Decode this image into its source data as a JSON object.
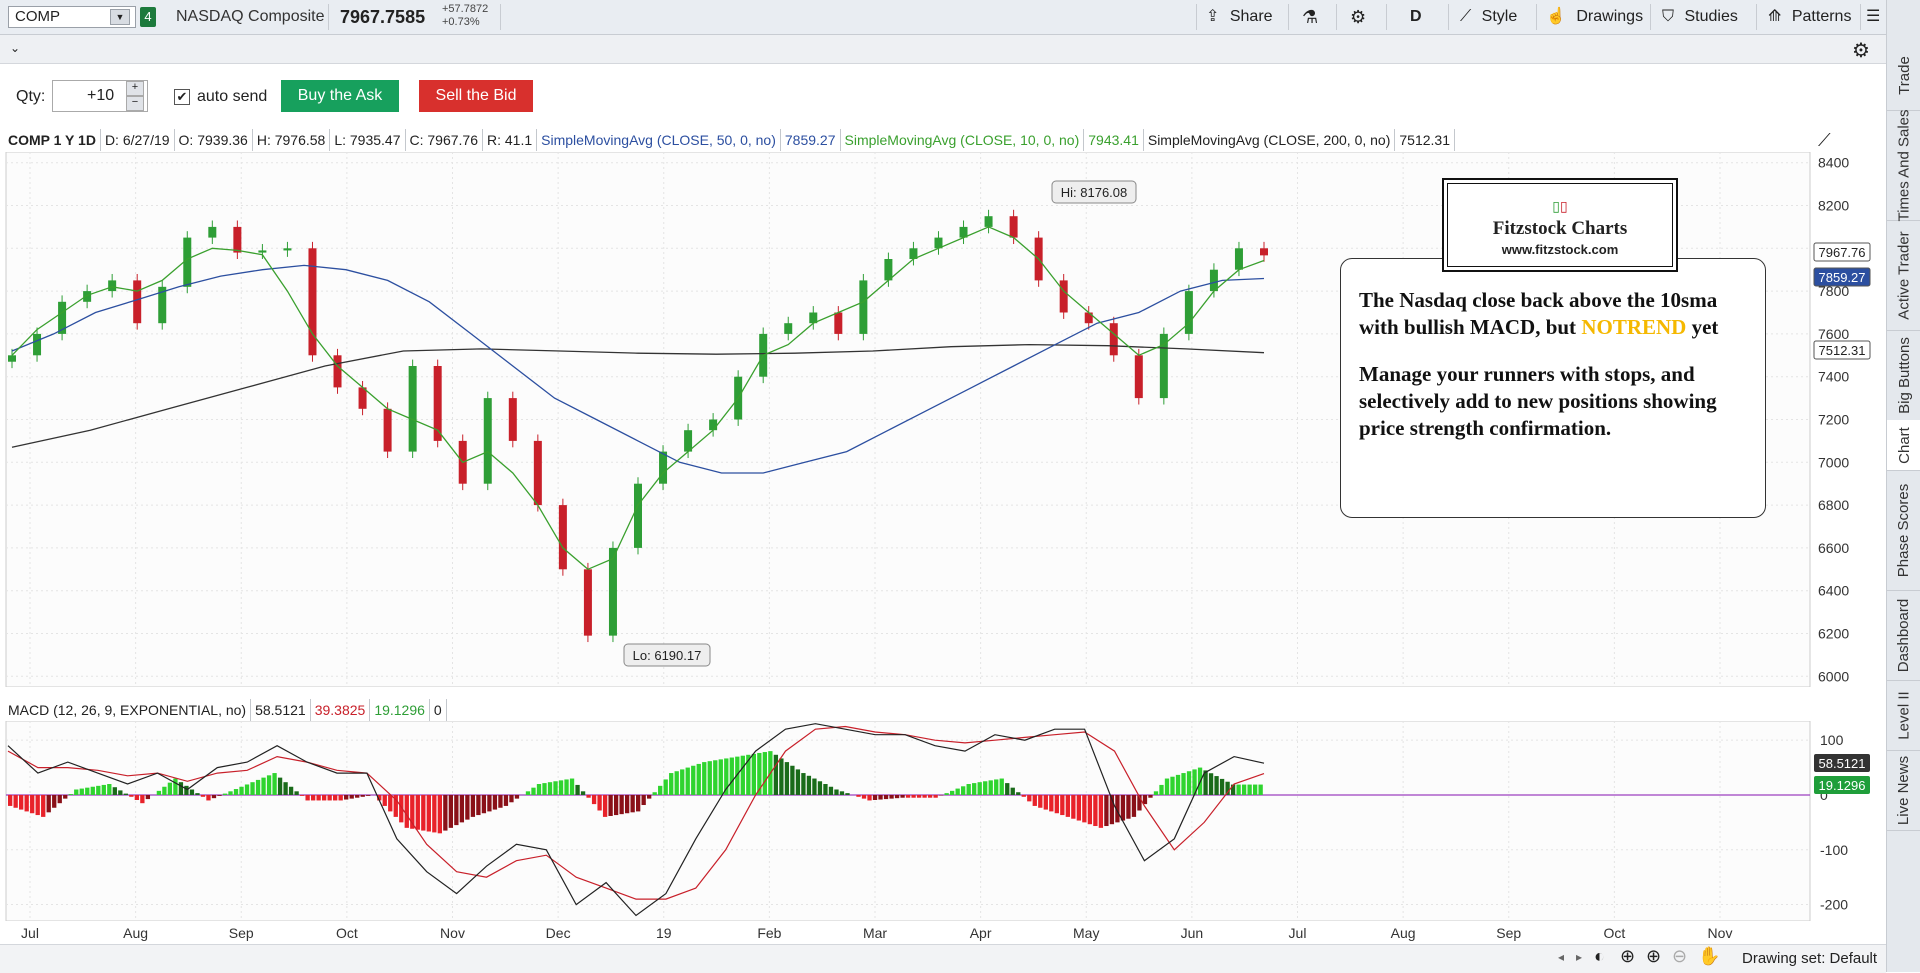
{
  "toolbar": {
    "symbol": "COMP",
    "link_number": "4",
    "description": "NASDAQ Composite",
    "last_price": "7967.7585",
    "change_abs": "+57.7872",
    "change_pct": "+0.73%",
    "share": "Share",
    "period": "D",
    "style": "Style",
    "drawings": "Drawings",
    "studies": "Studies",
    "patterns": "Patterns"
  },
  "order_bar": {
    "qty_label": "Qty:",
    "qty_value": "+10",
    "auto_send_label": "auto send",
    "auto_send_checked": true,
    "buy_label": "Buy the Ask",
    "sell_label": "Sell the Bid",
    "buy_color": "#17a05d",
    "sell_color": "#d8302d"
  },
  "right_tabs": [
    "Trade",
    "Times And Sales",
    "Active Trader",
    "Big Buttons",
    "Chart",
    "Phase Scores",
    "Dashboard",
    "Level II",
    "Live News"
  ],
  "active_tab": "Chart",
  "chart_header": {
    "title": "COMP 1 Y 1D",
    "date": "D: 6/27/19",
    "open": "O: 7939.36",
    "high": "H: 7976.58",
    "low": "L: 7935.47",
    "close": "C: 7967.76",
    "range": "R: 41.1",
    "sma50_label": "SimpleMovingAvg (CLOSE, 50, 0, no)",
    "sma50_value": "7859.27",
    "sma10_label": "SimpleMovingAvg (CLOSE, 10, 0, no)",
    "sma10_value": "7943.41",
    "sma200_label": "SimpleMovingAvg (CLOSE, 200, 0, no)",
    "sma200_value": "7512.31"
  },
  "macd_header": {
    "label": "MACD (12, 26, 9, EXPONENTIAL, no)",
    "value": "58.5121",
    "avg": "39.3825",
    "diff": "19.1296",
    "zero": "0"
  },
  "annotation": {
    "logo_title": "Fitzstock Charts",
    "logo_url": "www.fitzstock.com",
    "line1": "The Nasdaq close back above the 10sma with bullish MACD, but",
    "notrend": "NOTREND",
    "line1_tail": " yet",
    "line2": "Manage your runners with stops, and selectively add to new positions showing price strength confirmation."
  },
  "bottom": {
    "drawing_set": "Drawing set: Default"
  },
  "colors": {
    "sma50": "#2c4fa0",
    "sma10": "#3aa02e",
    "sma200": "#333333",
    "up": "#2e9e36",
    "down": "#c8202a",
    "notrend": "#f5b800"
  },
  "chart_data": [
    {
      "type": "line",
      "title": "COMP 1 Y 1D",
      "x_ticks": [
        "Jul",
        "Aug",
        "Sep",
        "Oct",
        "Nov",
        "Dec",
        "19",
        "Feb",
        "Mar",
        "Apr",
        "May",
        "Jun",
        "Jul",
        "Aug",
        "Sep",
        "Oct",
        "Nov"
      ],
      "y_ticks": [
        8400,
        8200,
        8000,
        7800,
        7600,
        7400,
        7200,
        7000,
        6800,
        6600,
        6400,
        6200,
        6000
      ],
      "ylim": [
        5950,
        8450
      ],
      "grid": true,
      "annotations": {
        "hi": "Hi: 8176.08",
        "lo": "Lo: 6190.17"
      },
      "price_labels": [
        {
          "value": "7967.76"
        },
        {
          "value": "7859.27"
        },
        {
          "value": "7512.31"
        }
      ],
      "close": [
        7500,
        7600,
        7750,
        7800,
        7850,
        7650,
        7820,
        8050,
        8100,
        7980,
        7990,
        8000,
        7500,
        7350,
        7250,
        7050,
        7450,
        7100,
        6900,
        7300,
        7100,
        6800,
        6500,
        6190,
        6600,
        6900,
        7050,
        7150,
        7200,
        7400,
        7600,
        7650,
        7700,
        7600,
        7850,
        7950,
        8000,
        8050,
        8100,
        8150,
        8050,
        7850,
        7700,
        7650,
        7500,
        7300,
        7600,
        7800,
        7900,
        8000,
        7967
      ],
      "sma10": [
        7500,
        7620,
        7700,
        7780,
        7820,
        7800,
        7850,
        7950,
        8000,
        7990,
        7970,
        7800,
        7600,
        7450,
        7350,
        7250,
        7200,
        7150,
        7000,
        7050,
        6950,
        6800,
        6600,
        6500,
        6550,
        6800,
        6950,
        7050,
        7150,
        7300,
        7500,
        7550,
        7650,
        7700,
        7750,
        7850,
        7950,
        8000,
        8050,
        8100,
        8050,
        7950,
        7800,
        7700,
        7600,
        7500,
        7550,
        7650,
        7800,
        7900,
        7943
      ],
      "sma50": [
        7520,
        7600,
        7700,
        7760,
        7820,
        7870,
        7900,
        7920,
        7900,
        7850,
        7750,
        7600,
        7450,
        7300,
        7200,
        7100,
        7000,
        6950,
        6950,
        7000,
        7050,
        7150,
        7250,
        7350,
        7450,
        7550,
        7650,
        7700,
        7800,
        7850,
        7859
      ],
      "sma200": [
        7070,
        7150,
        7250,
        7350,
        7450,
        7520,
        7530,
        7520,
        7510,
        7505,
        7510,
        7520,
        7540,
        7550,
        7545,
        7530,
        7512
      ],
      "series_names": [
        "SimpleMovingAvg (CLOSE, 50, 0, no)",
        "SimpleMovingAvg (CLOSE, 10, 0, no)",
        "SimpleMovingAvg (CLOSE, 200, 0, no)"
      ]
    },
    {
      "type": "bar",
      "title": "MACD (12, 26, 9, EXPONENTIAL, no)",
      "y_ticks": [
        100,
        0,
        -100,
        -200
      ],
      "ylim": [
        -230,
        135
      ],
      "value_labels": [
        "58.5121",
        "19.1296"
      ],
      "macd": [
        90,
        40,
        60,
        40,
        20,
        40,
        10,
        50,
        60,
        90,
        60,
        40,
        40,
        -80,
        -140,
        -180,
        -130,
        -90,
        -100,
        -200,
        -160,
        -220,
        -180,
        -80,
        10,
        80,
        120,
        130,
        120,
        110,
        110,
        90,
        80,
        110,
        100,
        120,
        120,
        -20,
        -120,
        -80,
        40,
        70,
        58
      ],
      "signal": [
        80,
        50,
        50,
        45,
        35,
        40,
        25,
        40,
        45,
        70,
        60,
        45,
        40,
        -10,
        -90,
        -140,
        -150,
        -120,
        -110,
        -150,
        -170,
        -190,
        -190,
        -170,
        -100,
        0,
        80,
        120,
        125,
        115,
        110,
        100,
        95,
        100,
        105,
        110,
        115,
        80,
        -20,
        -100,
        -50,
        20,
        39
      ],
      "histogram": [
        -20,
        -40,
        10,
        20,
        -15,
        30,
        -10,
        15,
        40,
        -10,
        -10,
        0,
        -60,
        -70,
        -40,
        -20,
        20,
        30,
        -40,
        -30,
        40,
        60,
        70,
        80,
        40,
        10,
        -10,
        -5,
        -5,
        20,
        30,
        -20,
        -40,
        -60,
        -40,
        30,
        50,
        19
      ]
    }
  ]
}
